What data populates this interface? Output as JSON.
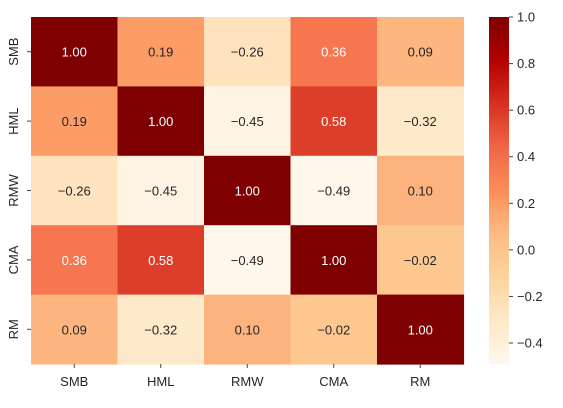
{
  "chart_data": {
    "type": "heatmap",
    "title": "",
    "xlabel": "",
    "ylabel": "",
    "x_categories": [
      "SMB",
      "HML",
      "RMW",
      "CMA",
      "RM"
    ],
    "y_categories": [
      "SMB",
      "HML",
      "RMW",
      "CMA",
      "RM"
    ],
    "values": [
      [
        1.0,
        0.19,
        -0.26,
        0.36,
        0.09
      ],
      [
        0.19,
        1.0,
        -0.45,
        0.58,
        -0.32
      ],
      [
        -0.26,
        -0.45,
        1.0,
        -0.49,
        0.1
      ],
      [
        0.36,
        0.58,
        -0.49,
        1.0,
        -0.02
      ],
      [
        0.09,
        -0.32,
        0.1,
        -0.02,
        1.0
      ]
    ],
    "cell_labels": [
      [
        "1.00",
        "0.19",
        "−0.26",
        "0.36",
        "0.09"
      ],
      [
        "0.19",
        "1.00",
        "−0.45",
        "0.58",
        "−0.32"
      ],
      [
        "−0.26",
        "−0.45",
        "1.00",
        "−0.49",
        "0.10"
      ],
      [
        "0.36",
        "0.58",
        "−0.49",
        "1.00",
        "−0.02"
      ],
      [
        "0.09",
        "−0.32",
        "0.10",
        "−0.02",
        "1.00"
      ]
    ],
    "colorbar": {
      "range": [
        -0.49,
        1.0
      ],
      "ticks": [
        1.0,
        0.8,
        0.6,
        0.4,
        0.2,
        0.0,
        -0.2,
        -0.4
      ],
      "tick_labels": [
        "1.0",
        "0.8",
        "0.6",
        "0.4",
        "0.2",
        "0.0",
        "−0.2",
        "−0.4"
      ],
      "colormap": "OrRd",
      "colors": [
        "#fff7ec",
        "#fee8c8",
        "#fdd49e",
        "#fdbb84",
        "#fc8d59",
        "#ef6548",
        "#d7301f",
        "#b30000",
        "#7f0000"
      ]
    },
    "grid": false
  }
}
